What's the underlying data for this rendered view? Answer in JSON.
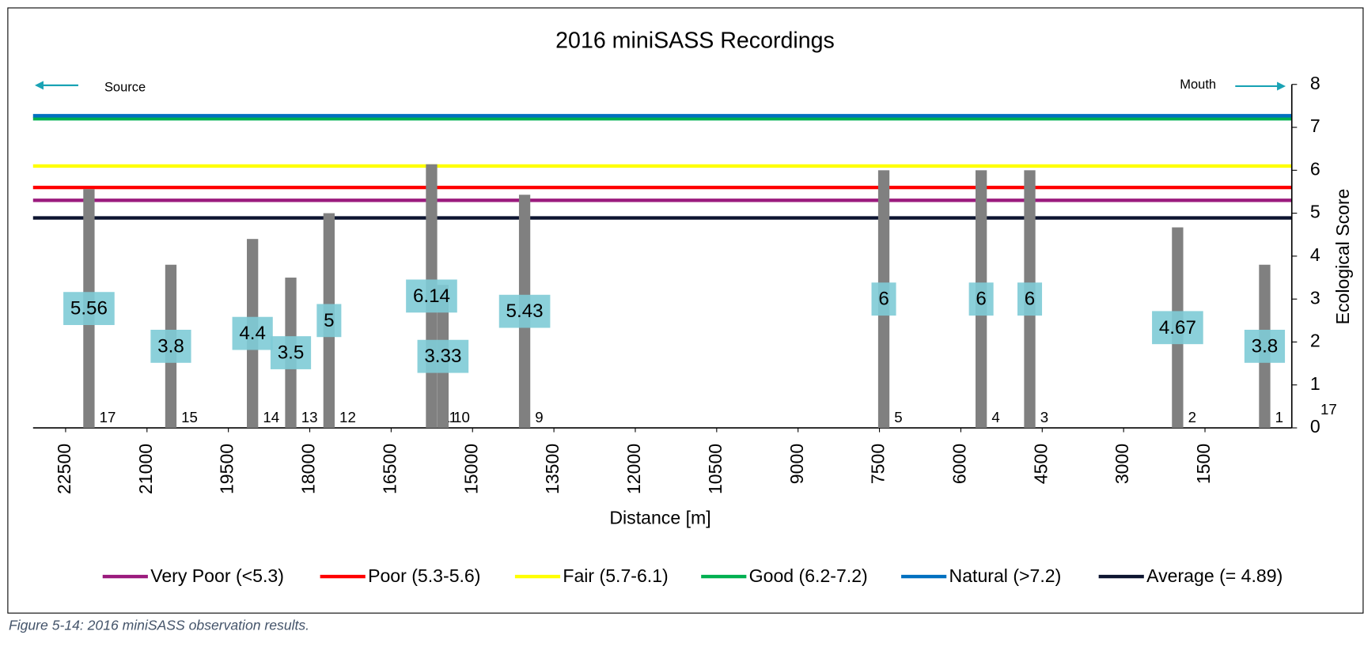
{
  "chart_data": {
    "type": "bar",
    "title": "2016 miniSASS Recordings",
    "x_label": "Distance [m]",
    "y_label": "Ecological Score",
    "annotations": {
      "source": "Source",
      "mouth": "Mouth",
      "extra": "17"
    },
    "x": [
      22070,
      20560,
      19055,
      18350,
      17645,
      15755,
      15545,
      14040,
      7420,
      5625,
      4730,
      2005,
      400
    ],
    "values": [
      5.56,
      3.8,
      4.4,
      3.5,
      5,
      6.14,
      3.33,
      5.43,
      6,
      6,
      6,
      4.67,
      3.8
    ],
    "site_labels": [
      17,
      15,
      14,
      13,
      12,
      11,
      10,
      9,
      5,
      4,
      3,
      2,
      1
    ],
    "color": "#808080",
    "label_color": "#7ecbd6",
    "xlim": [
      23100,
      -100
    ],
    "xticks": [
      22500,
      21000,
      19500,
      18000,
      16500,
      15000,
      13500,
      12000,
      10500,
      9000,
      7500,
      6000,
      4500,
      3000,
      1500
    ],
    "ylim": [
      0,
      8
    ],
    "yticks": [
      0,
      1,
      2,
      3,
      4,
      5,
      6,
      7,
      8
    ],
    "thresholds": [
      {
        "name": "Very Poor (<5.3)",
        "color": "#9b1b7d",
        "value": 5.3
      },
      {
        "name": "Poor (5.3-5.6)",
        "color": "#ff0000",
        "value": 5.6
      },
      {
        "name": "Fair (5.7-6.1)",
        "color": "#ffff00",
        "value": 6.1
      },
      {
        "name": "Good (6.2-7.2)",
        "color": "#00b050",
        "value": 7.2
      },
      {
        "name": "Natural (>7.2)",
        "color": "#0070c0",
        "value": 7.27
      },
      {
        "name": "Average (= 4.89)",
        "color": "#0d1530",
        "value": 4.89
      }
    ]
  },
  "caption": "Figure 5-14: 2016 miniSASS observation results."
}
